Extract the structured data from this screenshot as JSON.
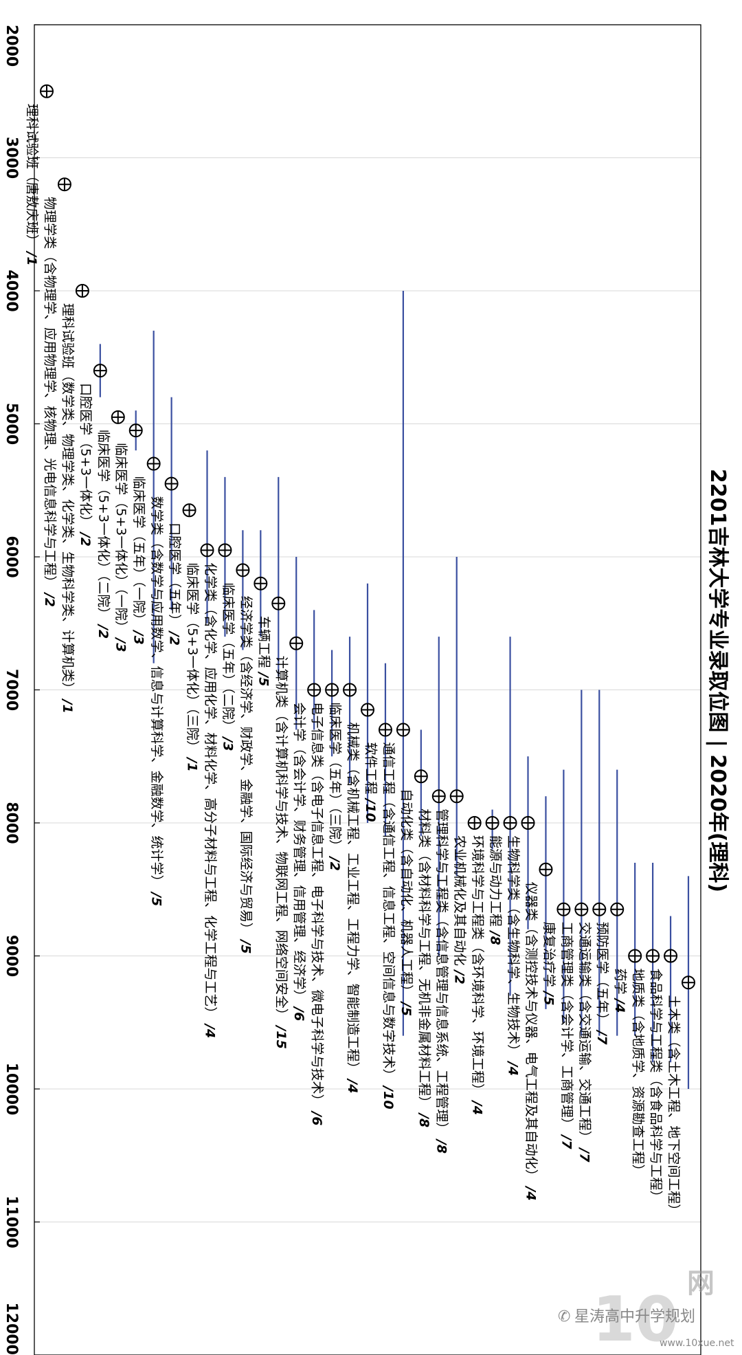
{
  "chart_data": {
    "type": "scatter",
    "title": "2201吉林大学专业录取位图 | 2020年(理科)",
    "xlabel": "",
    "ylabel": "",
    "xlim": [
      2000,
      12000
    ],
    "x_ticks": [
      "2000",
      "3000",
      "4000",
      "5000",
      "6000",
      "7000",
      "8000",
      "9000",
      "10000",
      "11000",
      "12000"
    ],
    "grid": true,
    "marker": "circle-plus",
    "colors": {
      "range_line": "#3a4fa0",
      "marker": "#000000",
      "grid": "#d8d8d8"
    },
    "points": [
      {
        "label": "理科试验班（唐敖庆班）",
        "count": "/1",
        "median": 2500,
        "min": null,
        "max": null
      },
      {
        "label": "物理学类（含物理学、应用物理学、核物理、光电信息科学与工程）",
        "count": "/2",
        "median": 3200,
        "min": null,
        "max": null
      },
      {
        "label": "理科试验班（数学类、物理学类、化学类、生物科学类、计算机类）",
        "count": "/1",
        "median": 4000,
        "min": null,
        "max": null
      },
      {
        "label": "口腔医学（5+3一体化）",
        "count": "/2",
        "median": 4600,
        "min": 4400,
        "max": 4800
      },
      {
        "label": "临床医学（5+3一体化）（二院）",
        "count": "/2",
        "median": 4950,
        "min": null,
        "max": null
      },
      {
        "label": "临床医学（5+3一体化）（一院）",
        "count": "/3",
        "median": 5050,
        "min": 4900,
        "max": 5200
      },
      {
        "label": "临床医学（五年）（一院）",
        "count": "/3",
        "median": 5300,
        "min": 4300,
        "max": 6800
      },
      {
        "label": "数学类（含数学与应用数学、信息与计算科学、金融数学、统计学）",
        "count": "/5",
        "median": 5450,
        "min": 4800,
        "max": 6400
      },
      {
        "label": "口腔医学（五年）",
        "count": "/2",
        "median": 5650,
        "min": null,
        "max": null
      },
      {
        "label": "临床医学（5+3一体化）（三院）",
        "count": "/1",
        "median": 5950,
        "min": 5200,
        "max": 6500
      },
      {
        "label": "化学类（含化学、应用化学、材料化学、高分子材料与工程、化学工程与工艺）",
        "count": "/4",
        "median": 5950,
        "min": 5400,
        "max": 6600
      },
      {
        "label": "临床医学（五年）（二院）",
        "count": "/3",
        "median": 6100,
        "min": 5800,
        "max": 6700
      },
      {
        "label": "经济学类（含经济学、财政学、金融学、国际经济与贸易）",
        "count": "/5",
        "median": 6200,
        "min": 5800,
        "max": 6600
      },
      {
        "label": "车辆工程",
        "count": "/5",
        "median": 6350,
        "min": 5400,
        "max": 6900
      },
      {
        "label": "计算机类（含计算机科学与技术、物联网工程、网络空间安全）",
        "count": "/15",
        "median": 6650,
        "min": 6000,
        "max": 7300
      },
      {
        "label": "会计学（含会计学、财务管理、信用管理、经济学）",
        "count": "/6",
        "median": 7000,
        "min": 6400,
        "max": 7300
      },
      {
        "label": "电子信息类（含电子信息工程、电子科学与技术、微电子科学与技术）",
        "count": "/6",
        "median": 7000,
        "min": 6700,
        "max": 7500
      },
      {
        "label": "临床医学（五年）（三院）",
        "count": "/2",
        "median": 7000,
        "min": 6600,
        "max": 7700
      },
      {
        "label": "机械类（含机械工程、工业工程、工程力学、智能制造工程）",
        "count": "/4",
        "median": 7150,
        "min": 6200,
        "max": 8000
      },
      {
        "label": "软件工程",
        "count": "/10",
        "median": 7300,
        "min": 6800,
        "max": 8100
      },
      {
        "label": "通信工程（含通信工程、信息工程、空间信息与数字技术）",
        "count": "/10",
        "median": 7300,
        "min": 4000,
        "max": 9600
      },
      {
        "label": "自动化类（含自动化、机器人工程）",
        "count": "/5",
        "median": 7650,
        "min": 7300,
        "max": 8100
      },
      {
        "label": "材料类（含材料科学与工程、无机非金属材料工程）",
        "count": "/8",
        "median": 7800,
        "min": 6600,
        "max": 9000
      },
      {
        "label": "管理科学与工程类（含信息管理与信息系统、工程管理）",
        "count": "/8",
        "median": 7800,
        "min": 6000,
        "max": 8400
      },
      {
        "label": "农业机械化及其自动化",
        "count": "/2",
        "median": 8000,
        "min": null,
        "max": null
      },
      {
        "label": "环境科学与工程类（含环境科学、环境工程）",
        "count": "/4",
        "median": 8000,
        "min": 7900,
        "max": 8200
      },
      {
        "label": "能源与动力工程",
        "count": "/8",
        "median": 8000,
        "min": 6600,
        "max": 9300
      },
      {
        "label": "生物科学类（含生物科学、生物技术）",
        "count": "/4",
        "median": 8000,
        "min": 7500,
        "max": 8800
      },
      {
        "label": "仪器类（含测控技术与仪器、电气工程及其自动化）",
        "count": "/4",
        "median": 8350,
        "min": 7800,
        "max": 9400
      },
      {
        "label": "康复治疗学",
        "count": "/5",
        "median": 8650,
        "min": 7600,
        "max": 9500
      },
      {
        "label": "工商管理类（含会计学、工商管理）",
        "count": "/7",
        "median": 8650,
        "min": 7000,
        "max": 9600
      },
      {
        "label": "交通运输类（含交通运输、交通工程）",
        "count": "/7",
        "median": 8650,
        "min": 7000,
        "max": 9600
      },
      {
        "label": "预防医学（五年）",
        "count": "/7",
        "median": 8650,
        "min": 7600,
        "max": 9600
      },
      {
        "label": "药学",
        "count": "/4",
        "median": 9000,
        "min": 8300,
        "max": 9600
      },
      {
        "label": "地质类（含地质学、资源勘查工程）",
        "count": "",
        "median": 9000,
        "min": 8300,
        "max": 9800
      },
      {
        "label": "食品科学与工程类（含食品科学与工程）",
        "count": "",
        "median": 9000,
        "min": 8700,
        "max": 9800
      },
      {
        "label": "土木类（含土木工程、地下空间工程）",
        "count": "",
        "median": 9200,
        "min": 8400,
        "max": 10000
      }
    ]
  },
  "watermark": {
    "brand": "网",
    "account": "星涛高中升学规划",
    "url": "www.10xue.net"
  }
}
